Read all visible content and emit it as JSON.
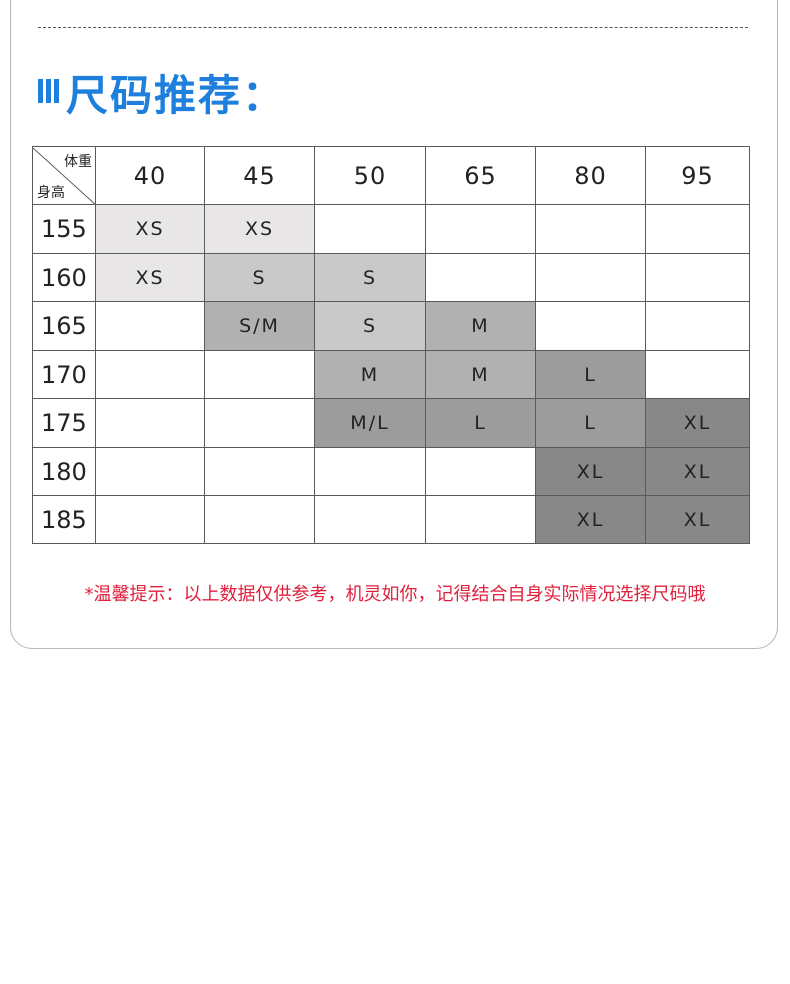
{
  "header": {
    "title": "尺码推荐："
  },
  "table": {
    "corner_top": "体重",
    "corner_bottom": "身高",
    "columns": [
      40,
      45,
      50,
      65,
      80,
      95
    ],
    "rows": [
      {
        "height": 155,
        "cells": [
          "XS",
          "XS",
          null,
          null,
          null,
          null
        ]
      },
      {
        "height": 160,
        "cells": [
          "XS",
          "S",
          "S",
          null,
          null,
          null
        ]
      },
      {
        "height": 165,
        "cells": [
          null,
          "S/M",
          "S",
          "M",
          null,
          null
        ]
      },
      {
        "height": 170,
        "cells": [
          null,
          null,
          "M",
          "M",
          "L",
          null
        ]
      },
      {
        "height": 175,
        "cells": [
          null,
          null,
          "M/L",
          "L",
          "L",
          "XL"
        ]
      },
      {
        "height": 180,
        "cells": [
          null,
          null,
          null,
          null,
          "XL",
          "XL"
        ]
      },
      {
        "height": 185,
        "cells": [
          null,
          null,
          null,
          null,
          "XL",
          "XL"
        ]
      }
    ]
  },
  "note": "*温馨提示：以上数据仅供参考，机灵如你，记得结合自身实际情况选择尺码哦"
}
